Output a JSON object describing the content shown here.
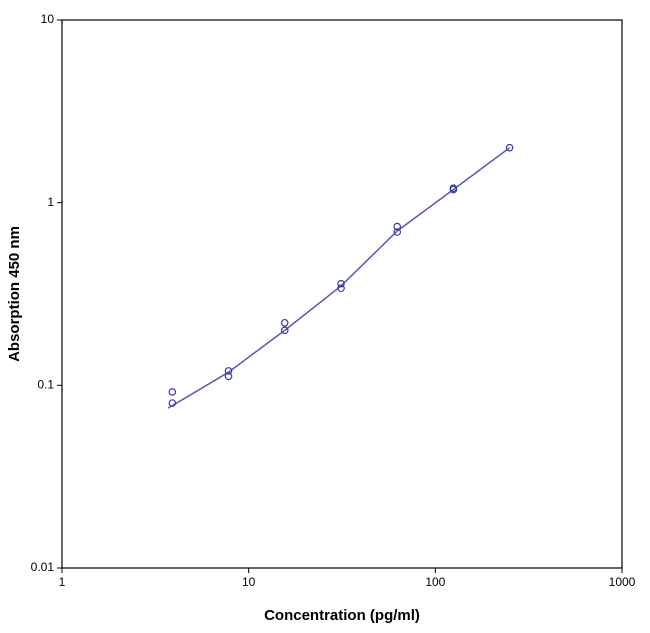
{
  "chart_data": {
    "type": "scatter",
    "xlabel": "Concentration (pg/ml)",
    "ylabel": "Absorption 450 nm",
    "xscale": "log",
    "yscale": "log",
    "xlim": [
      1,
      1000
    ],
    "ylim": [
      0.01,
      10
    ],
    "xticks": [
      1,
      10,
      100,
      1000
    ],
    "yticks": [
      0.01,
      0.1,
      1,
      10
    ],
    "grid": false,
    "points": {
      "color": "#3a3aa0",
      "x": [
        3.9,
        3.9,
        7.8,
        7.8,
        15.6,
        15.6,
        31.25,
        31.25,
        62.5,
        62.5,
        125,
        125,
        250
      ],
      "y": [
        0.092,
        0.08,
        0.12,
        0.112,
        0.22,
        0.2,
        0.36,
        0.34,
        0.74,
        0.69,
        1.2,
        1.18,
        2.0
      ]
    },
    "curve": {
      "color": "#5a5aa8",
      "x": [
        3.7,
        5,
        7.8,
        15.6,
        31.25,
        62.5,
        125,
        250
      ],
      "y": [
        0.075,
        0.09,
        0.118,
        0.2,
        0.35,
        0.7,
        1.18,
        2.0
      ]
    }
  }
}
